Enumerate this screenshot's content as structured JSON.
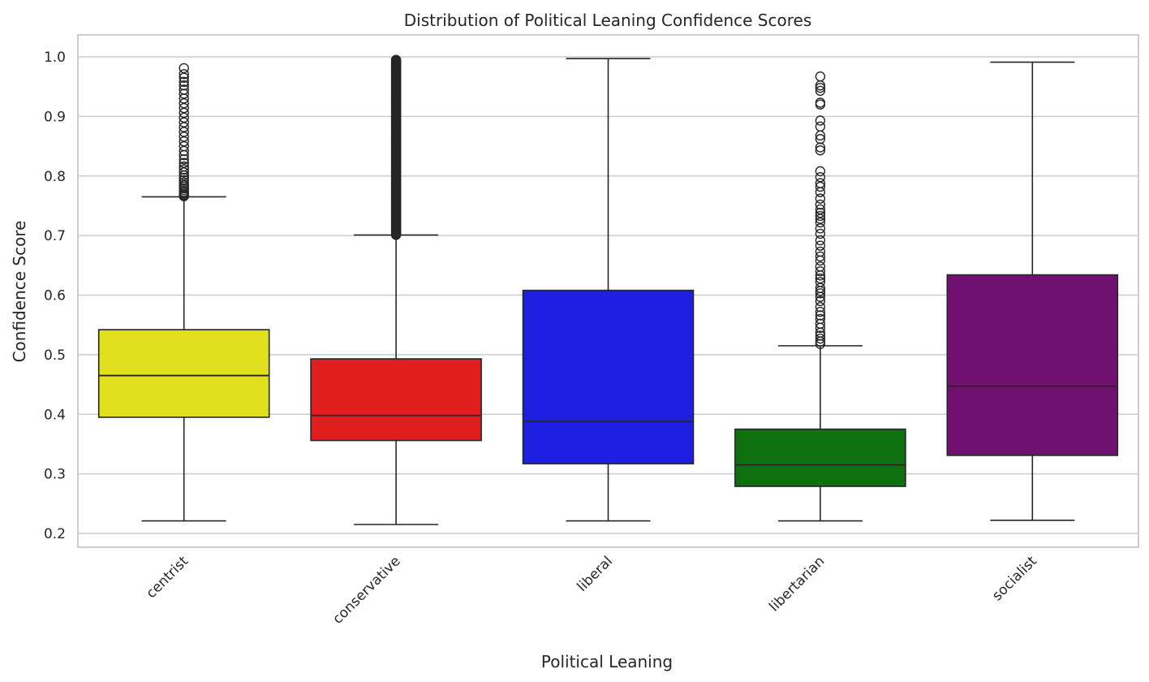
{
  "chart_data": {
    "type": "box",
    "title": "Distribution of Political Leaning Confidence Scores",
    "xlabel": "Political Leaning",
    "ylabel": "Confidence Score",
    "ylim": [
      0.175,
      1.038
    ],
    "yticks": [
      0.2,
      0.3,
      0.4,
      0.5,
      0.6,
      0.7,
      0.8,
      0.9,
      1.0
    ],
    "ytick_labels": [
      "0.2",
      "0.3",
      "0.4",
      "0.5",
      "0.6",
      "0.7",
      "0.8",
      "0.9",
      "1.0"
    ],
    "grid": true,
    "categories": [
      "centrist",
      "conservative",
      "liberal",
      "libertarian",
      "socialist"
    ],
    "boxes": [
      {
        "name": "centrist",
        "color": "#e0e01e",
        "whisker_low": 0.221,
        "q1": 0.395,
        "median": 0.465,
        "q3": 0.542,
        "whisker_high": 0.765,
        "outliers": [
          0.766,
          0.768,
          0.77,
          0.773,
          0.776,
          0.779,
          0.782,
          0.785,
          0.789,
          0.793,
          0.797,
          0.801,
          0.806,
          0.811,
          0.816,
          0.822,
          0.828,
          0.835,
          0.842,
          0.85,
          0.858,
          0.866,
          0.874,
          0.882,
          0.89,
          0.898,
          0.906,
          0.914,
          0.922,
          0.93,
          0.938,
          0.945,
          0.952,
          0.958,
          0.965,
          0.971,
          0.981
        ]
      },
      {
        "name": "conservative",
        "color": "#e01e1e",
        "whisker_low": 0.215,
        "q1": 0.356,
        "median": 0.398,
        "q3": 0.493,
        "whisker_high": 0.701,
        "outliers_dense_range": [
          0.701,
          0.995
        ]
      },
      {
        "name": "liberal",
        "color": "#1e1ee0",
        "whisker_low": 0.221,
        "q1": 0.317,
        "median": 0.388,
        "q3": 0.608,
        "whisker_high": 0.997,
        "outliers": []
      },
      {
        "name": "libertarian",
        "color": "#0e700e",
        "whisker_low": 0.221,
        "q1": 0.279,
        "median": 0.315,
        "q3": 0.375,
        "whisker_high": 0.515,
        "outliers": [
          0.518,
          0.522,
          0.527,
          0.532,
          0.537,
          0.545,
          0.552,
          0.56,
          0.566,
          0.572,
          0.58,
          0.59,
          0.597,
          0.603,
          0.607,
          0.612,
          0.622,
          0.628,
          0.633,
          0.64,
          0.648,
          0.658,
          0.665,
          0.673,
          0.683,
          0.692,
          0.703,
          0.712,
          0.722,
          0.728,
          0.733,
          0.738,
          0.744,
          0.752,
          0.762,
          0.773,
          0.782,
          0.788,
          0.798,
          0.808,
          0.843,
          0.848,
          0.862,
          0.868,
          0.883,
          0.893,
          0.92,
          0.923,
          0.943,
          0.948,
          0.952,
          0.967
        ]
      },
      {
        "name": "socialist",
        "color": "#701070",
        "whisker_low": 0.222,
        "q1": 0.331,
        "median": 0.447,
        "q3": 0.634,
        "whisker_high": 0.991,
        "outliers": []
      }
    ]
  }
}
